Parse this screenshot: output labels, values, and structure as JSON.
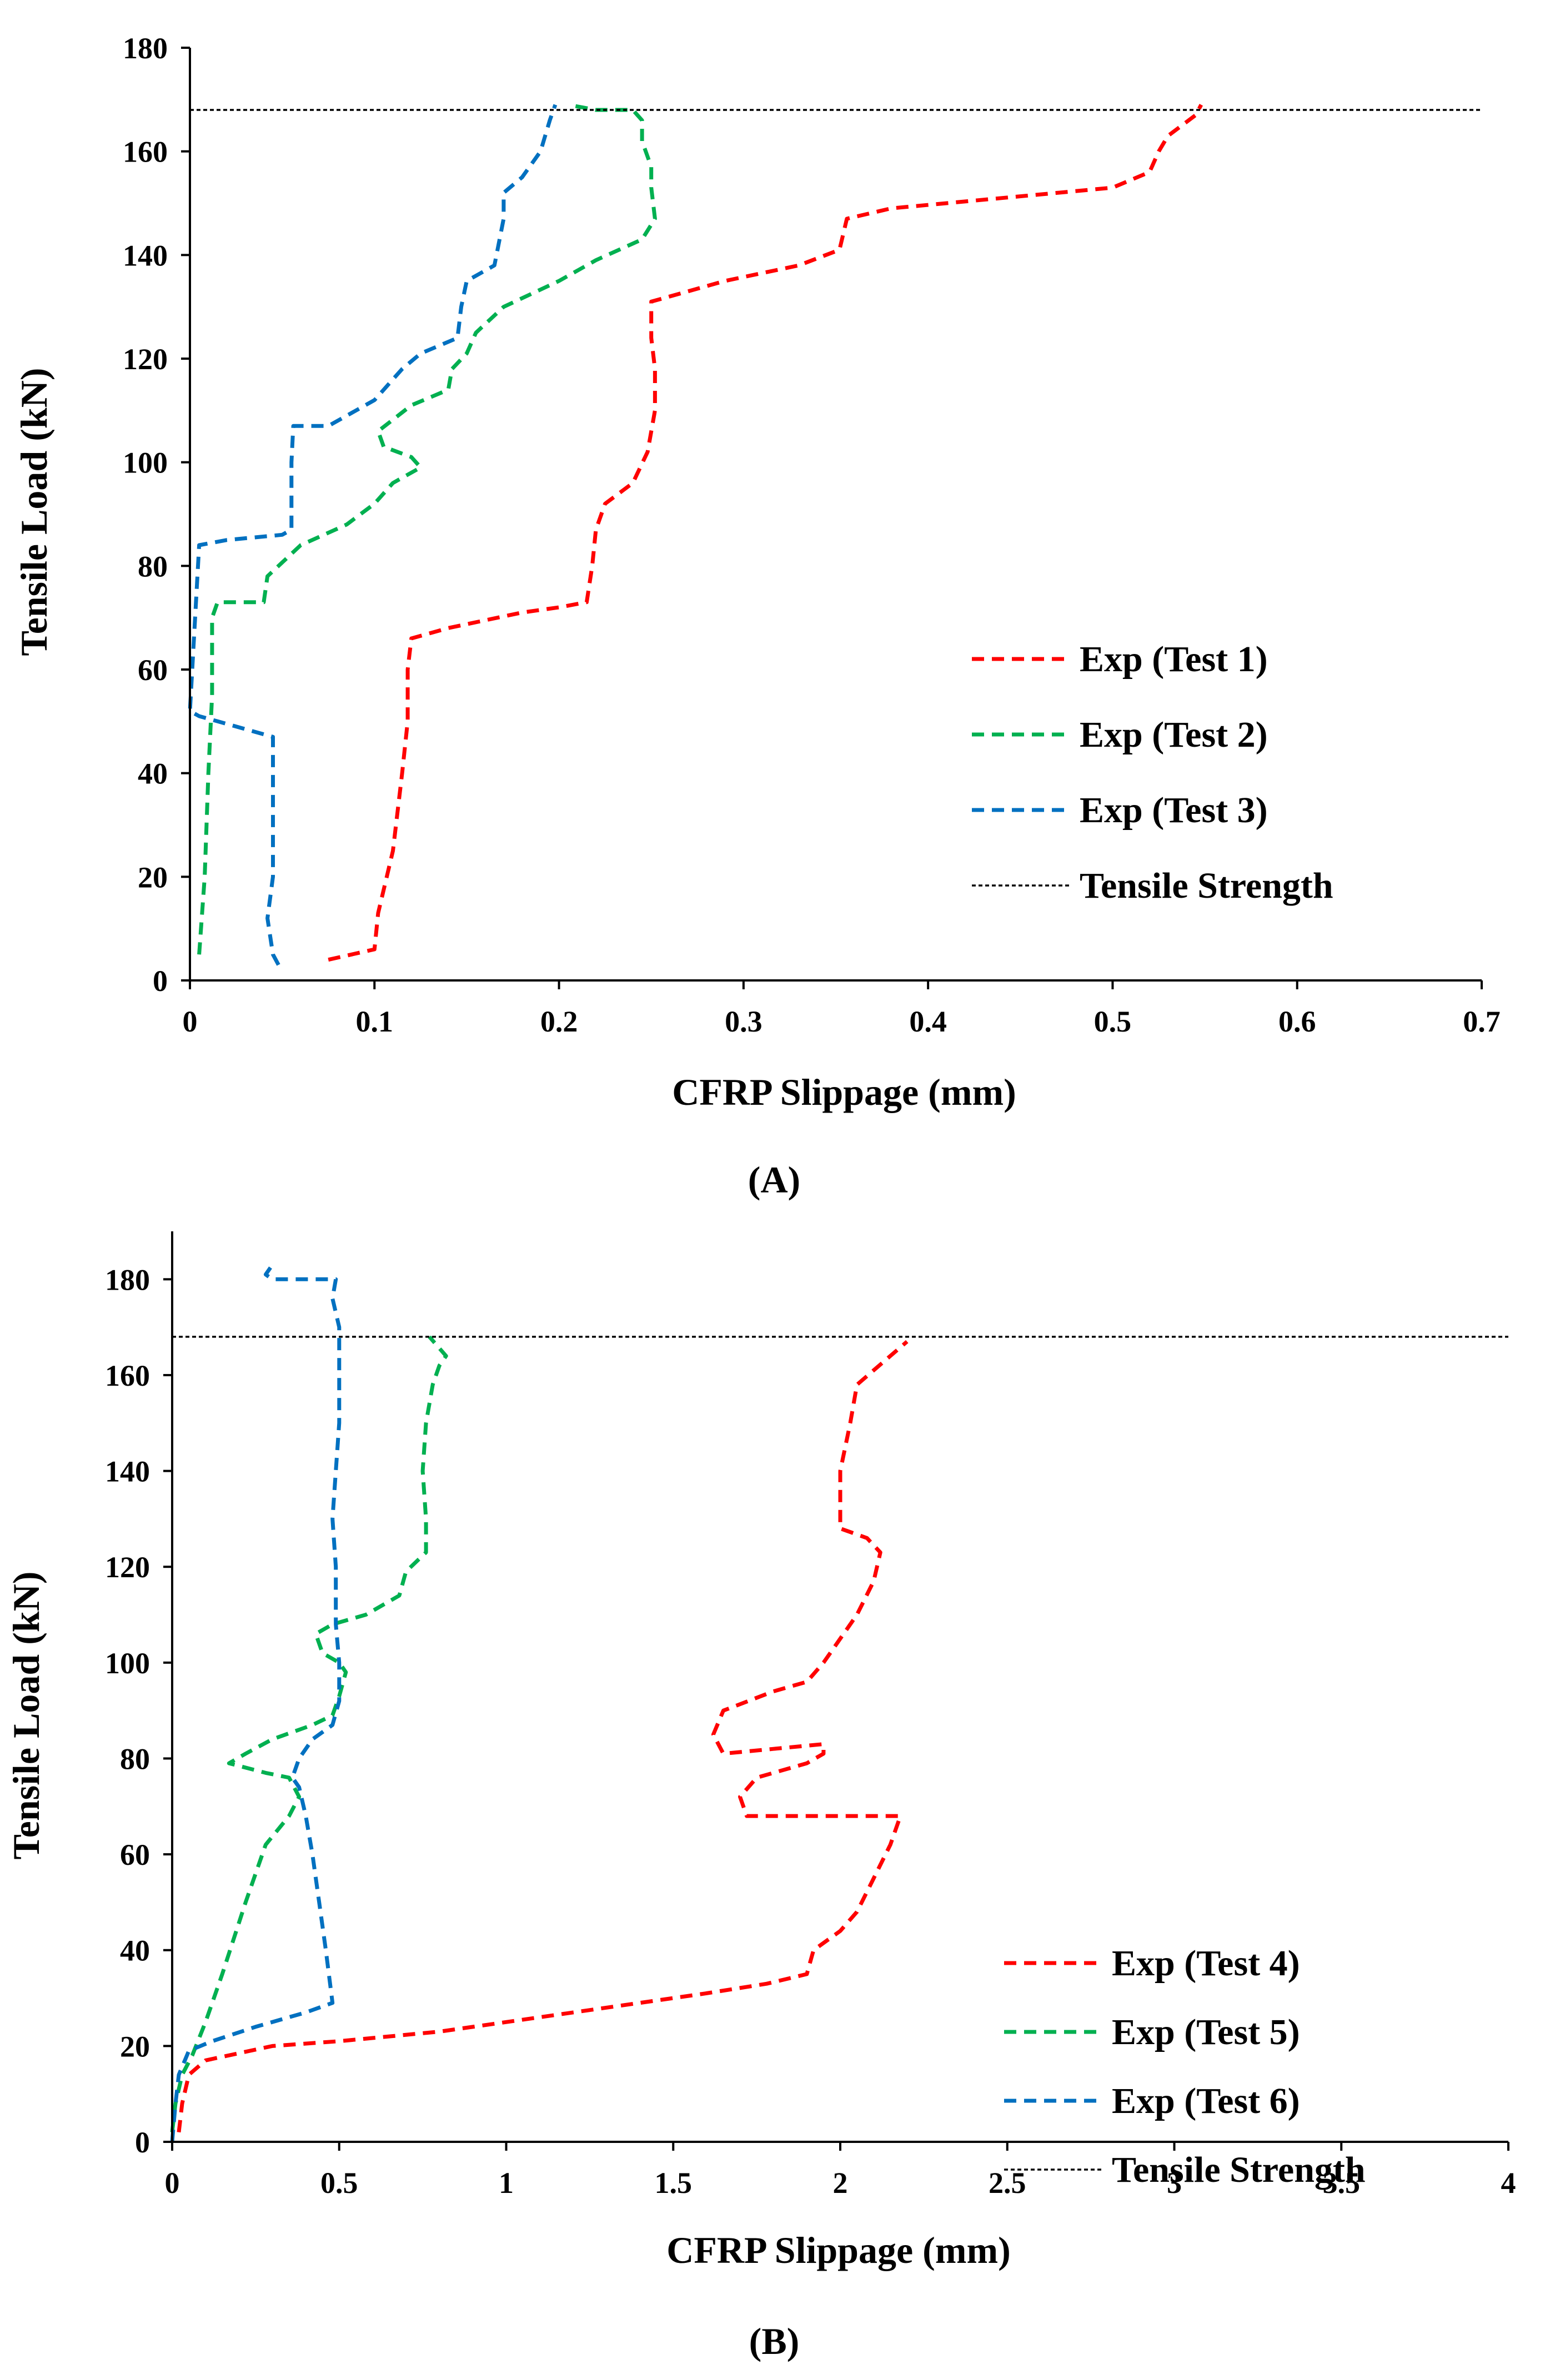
{
  "chart_data": [
    {
      "type": "line",
      "panel_label": "(A)",
      "xlabel": "CFRP Slippage (mm)",
      "ylabel": "Tensile Load (kN)",
      "xlim": [
        0,
        0.7
      ],
      "ylim": [
        0,
        180
      ],
      "xticks": [
        "0",
        "0.1",
        "0.2",
        "0.3",
        "0.4",
        "0.5",
        "0.6",
        "0.7"
      ],
      "yticks": [
        "0",
        "20",
        "40",
        "60",
        "80",
        "100",
        "120",
        "140",
        "160",
        "180"
      ],
      "grid": false,
      "legend_position": "bottom-right",
      "reference_line": {
        "name": "Tensile Strength",
        "y": 168
      },
      "series": [
        {
          "name": "Exp (Test 1)",
          "color": "#ff0000",
          "points": [
            [
              0.075,
              4
            ],
            [
              0.1,
              6
            ],
            [
              0.102,
              13
            ],
            [
              0.11,
              25
            ],
            [
              0.115,
              40
            ],
            [
              0.118,
              50
            ],
            [
              0.118,
              60
            ],
            [
              0.12,
              66
            ],
            [
              0.14,
              68
            ],
            [
              0.18,
              71
            ],
            [
              0.2,
              72
            ],
            [
              0.215,
              73
            ],
            [
              0.218,
              80
            ],
            [
              0.22,
              87
            ],
            [
              0.225,
              92
            ],
            [
              0.24,
              96
            ],
            [
              0.248,
              102
            ],
            [
              0.252,
              110
            ],
            [
              0.252,
              118
            ],
            [
              0.25,
              124
            ],
            [
              0.25,
              131
            ],
            [
              0.26,
              132
            ],
            [
              0.29,
              135
            ],
            [
              0.33,
              138
            ],
            [
              0.352,
              141
            ],
            [
              0.356,
              147
            ],
            [
              0.38,
              149
            ],
            [
              0.44,
              151
            ],
            [
              0.5,
              153
            ],
            [
              0.52,
              156
            ],
            [
              0.525,
              160
            ],
            [
              0.53,
              163
            ],
            [
              0.545,
              167
            ],
            [
              0.548,
              169
            ]
          ]
        },
        {
          "name": "Exp (Test 2)",
          "color": "#00b050",
          "points": [
            [
              0.005,
              5
            ],
            [
              0.008,
              20
            ],
            [
              0.01,
              40
            ],
            [
              0.012,
              55
            ],
            [
              0.012,
              70
            ],
            [
              0.015,
              73
            ],
            [
              0.025,
              73
            ],
            [
              0.04,
              73
            ],
            [
              0.042,
              78
            ],
            [
              0.06,
              84
            ],
            [
              0.085,
              88
            ],
            [
              0.1,
              92
            ],
            [
              0.11,
              96
            ],
            [
              0.125,
              99
            ],
            [
              0.12,
              101
            ],
            [
              0.105,
              103
            ],
            [
              0.102,
              106
            ],
            [
              0.12,
              111
            ],
            [
              0.14,
              114
            ],
            [
              0.142,
              118
            ],
            [
              0.15,
              121
            ],
            [
              0.155,
              125
            ],
            [
              0.17,
              130
            ],
            [
              0.2,
              135
            ],
            [
              0.22,
              139
            ],
            [
              0.245,
              143
            ],
            [
              0.252,
              147
            ],
            [
              0.25,
              153
            ],
            [
              0.25,
              157
            ],
            [
              0.245,
              162
            ],
            [
              0.245,
              166
            ],
            [
              0.24,
              168
            ],
            [
              0.22,
              168
            ],
            [
              0.205,
              169
            ]
          ]
        },
        {
          "name": "Exp (Test 3)",
          "color": "#0070c0",
          "points": [
            [
              0.048,
              3
            ],
            [
              0.045,
              5
            ],
            [
              0.042,
              12
            ],
            [
              0.045,
              20
            ],
            [
              0.045,
              35
            ],
            [
              0.045,
              47
            ],
            [
              0.035,
              48
            ],
            [
              0.015,
              50
            ],
            [
              0.005,
              51
            ],
            [
              0,
              52
            ],
            [
              0.005,
              84
            ],
            [
              0.02,
              85
            ],
            [
              0.05,
              86
            ],
            [
              0.055,
              87
            ],
            [
              0.055,
              100
            ],
            [
              0.056,
              107
            ],
            [
              0.075,
              107
            ],
            [
              0.1,
              112
            ],
            [
              0.11,
              116
            ],
            [
              0.115,
              118
            ],
            [
              0.125,
              121
            ],
            [
              0.145,
              124
            ],
            [
              0.147,
              130
            ],
            [
              0.15,
              135
            ],
            [
              0.165,
              138
            ],
            [
              0.17,
              147
            ],
            [
              0.17,
              152
            ],
            [
              0.18,
              155
            ],
            [
              0.19,
              160
            ],
            [
              0.195,
              166
            ],
            [
              0.198,
              169
            ]
          ]
        }
      ]
    },
    {
      "type": "line",
      "panel_label": "(B)",
      "xlabel": "CFRP Slippage (mm)",
      "ylabel": "Tensile Load (kN)",
      "xlim": [
        0,
        4
      ],
      "ylim": [
        0,
        190
      ],
      "xticks": [
        "0",
        "0.5",
        "1",
        "1.5",
        "2",
        "2.5",
        "3",
        "3.5",
        "4"
      ],
      "yticks": [
        "0",
        "20",
        "40",
        "60",
        "80",
        "100",
        "120",
        "140",
        "160",
        "180"
      ],
      "grid": false,
      "legend_position": "bottom-right",
      "reference_line": {
        "name": "Tensile Strength",
        "y": 168
      },
      "series": [
        {
          "name": "Exp (Test 4)",
          "color": "#ff0000",
          "points": [
            [
              0.02,
              2
            ],
            [
              0.03,
              8
            ],
            [
              0.05,
              14
            ],
            [
              0.1,
              17
            ],
            [
              0.3,
              20
            ],
            [
              0.5,
              21
            ],
            [
              0.8,
              23
            ],
            [
              1.1,
              26
            ],
            [
              1.4,
              29
            ],
            [
              1.6,
              31
            ],
            [
              1.78,
              33
            ],
            [
              1.9,
              35
            ],
            [
              1.92,
              40
            ],
            [
              2.0,
              44
            ],
            [
              2.05,
              48
            ],
            [
              2.1,
              55
            ],
            [
              2.15,
              62
            ],
            [
              2.18,
              68
            ],
            [
              2.1,
              68
            ],
            [
              1.95,
              68
            ],
            [
              1.72,
              68
            ],
            [
              1.7,
              72
            ],
            [
              1.75,
              76
            ],
            [
              1.9,
              79
            ],
            [
              1.95,
              81
            ],
            [
              1.95,
              83
            ],
            [
              1.8,
              82
            ],
            [
              1.65,
              81
            ],
            [
              1.62,
              85
            ],
            [
              1.65,
              90
            ],
            [
              1.8,
              94
            ],
            [
              1.9,
              96
            ],
            [
              1.95,
              100
            ],
            [
              2.05,
              110
            ],
            [
              2.1,
              117
            ],
            [
              2.12,
              123
            ],
            [
              2.08,
              126
            ],
            [
              2.0,
              128
            ],
            [
              2.0,
              133
            ],
            [
              2.0,
              140
            ],
            [
              2.03,
              150
            ],
            [
              2.05,
              158
            ],
            [
              2.15,
              164
            ],
            [
              2.2,
              167
            ]
          ]
        },
        {
          "name": "Exp (Test 5)",
          "color": "#00b050",
          "points": [
            [
              0,
              2
            ],
            [
              0.01,
              8
            ],
            [
              0.03,
              14
            ],
            [
              0.06,
              18
            ],
            [
              0.1,
              25
            ],
            [
              0.15,
              35
            ],
            [
              0.22,
              50
            ],
            [
              0.28,
              62
            ],
            [
              0.35,
              68
            ],
            [
              0.38,
              72
            ],
            [
              0.35,
              76
            ],
            [
              0.28,
              77
            ],
            [
              0.17,
              79
            ],
            [
              0.22,
              81
            ],
            [
              0.3,
              84
            ],
            [
              0.42,
              87
            ],
            [
              0.48,
              89
            ],
            [
              0.5,
              93
            ],
            [
              0.52,
              98
            ],
            [
              0.5,
              100
            ],
            [
              0.45,
              102
            ],
            [
              0.43,
              106
            ],
            [
              0.48,
              108
            ],
            [
              0.58,
              110
            ],
            [
              0.68,
              114
            ],
            [
              0.7,
              119
            ],
            [
              0.76,
              123
            ],
            [
              0.76,
              130
            ],
            [
              0.75,
              140
            ],
            [
              0.76,
              150
            ],
            [
              0.78,
              158
            ],
            [
              0.8,
              162
            ],
            [
              0.82,
              164
            ],
            [
              0.77,
              168
            ]
          ]
        },
        {
          "name": "Exp (Test 6)",
          "color": "#0070c0",
          "points": [
            [
              0,
              0
            ],
            [
              0.01,
              8
            ],
            [
              0.02,
              14
            ],
            [
              0.05,
              19
            ],
            [
              0.12,
              21
            ],
            [
              0.25,
              24
            ],
            [
              0.4,
              27
            ],
            [
              0.48,
              29
            ],
            [
              0.46,
              40
            ],
            [
              0.44,
              50
            ],
            [
              0.42,
              60
            ],
            [
              0.4,
              68
            ],
            [
              0.38,
              74
            ],
            [
              0.36,
              76
            ],
            [
              0.38,
              80
            ],
            [
              0.42,
              84
            ],
            [
              0.48,
              87
            ],
            [
              0.5,
              92
            ],
            [
              0.5,
              100
            ],
            [
              0.49,
              108
            ],
            [
              0.49,
              120
            ],
            [
              0.48,
              130
            ],
            [
              0.49,
              140
            ],
            [
              0.5,
              150
            ],
            [
              0.5,
              160
            ],
            [
              0.5,
              170
            ],
            [
              0.48,
              176
            ],
            [
              0.49,
              180
            ],
            [
              0.3,
              180
            ],
            [
              0.28,
              181
            ],
            [
              0.3,
              183
            ]
          ]
        }
      ]
    }
  ]
}
